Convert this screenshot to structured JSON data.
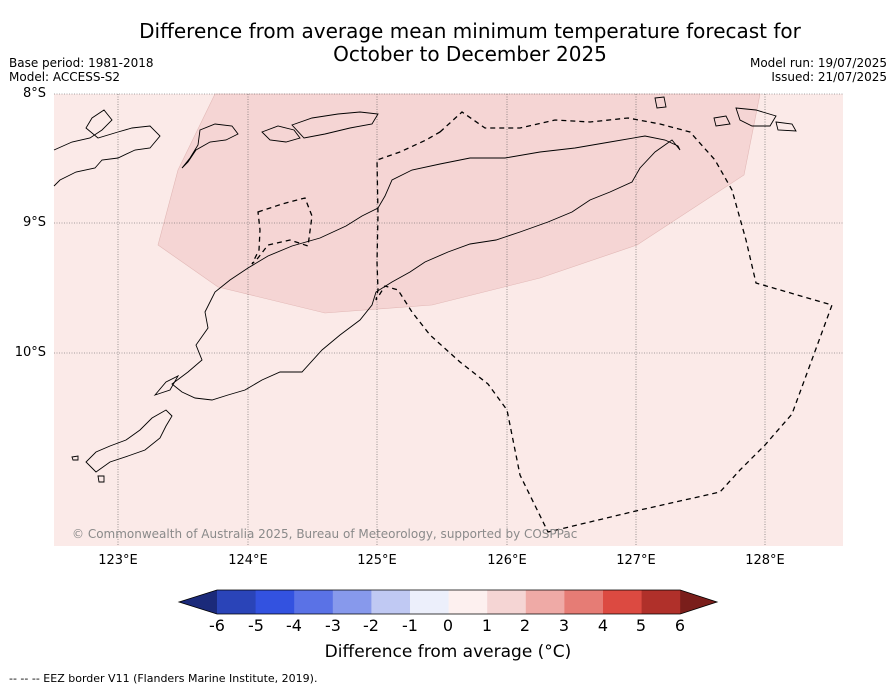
{
  "header": {
    "title_line1": "Difference from average mean minimum temperature forecast for",
    "title_line2": "October to December 2025",
    "base_period": "Base period: 1981-2018",
    "model": "Model: ACCESS-S2",
    "model_run": "Model run: 19/07/2025",
    "issued": "Issued: 21/07/2025"
  },
  "map": {
    "lat_labels": [
      "8°S",
      "9°S",
      "10°S"
    ],
    "lon_labels": [
      "123°E",
      "124°E",
      "125°E",
      "126°E",
      "127°E",
      "128°E"
    ],
    "copyright": "© Commonwealth of Australia 2025, Bureau of Meteorology, supported by COSPPac",
    "background_category": "0 to 1",
    "anomaly_region_category": "1 to 2",
    "colors": {
      "background_fill": "#fbeae8",
      "region_fill": "#f5d5d4",
      "coastline": "#000000",
      "eez": "#000000",
      "grid": "#555555"
    }
  },
  "colorbar": {
    "label": "Difference from average (°C)",
    "ticks": [
      "-6",
      "-5",
      "-4",
      "-3",
      "-2",
      "-1",
      "0",
      "1",
      "2",
      "3",
      "4",
      "5",
      "6"
    ],
    "colors": [
      "#1b2a7a",
      "#2a44b8",
      "#3352e0",
      "#5a72e6",
      "#8799ec",
      "#c0c9f3",
      "#eceffb",
      "#fdf0ef",
      "#f5d5d4",
      "#efaaa6",
      "#e67c75",
      "#dc4a41",
      "#b0302a",
      "#7a1e1b"
    ]
  },
  "footnote": "-- -- -- EEZ border V11 (Flanders Marine Institute, 2019)."
}
